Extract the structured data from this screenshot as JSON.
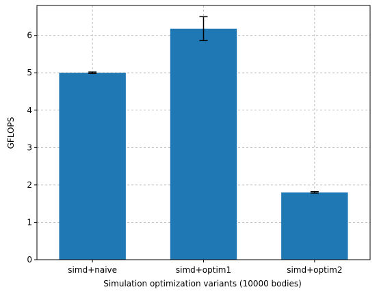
{
  "chart_data": {
    "type": "bar",
    "title": "",
    "xlabel": "Simulation optimization variants (10000 bodies)",
    "ylabel": "GFLOPS",
    "categories": [
      "simd+naive",
      "simd+optim1",
      "simd+optim2"
    ],
    "values": [
      5.0,
      6.18,
      1.8
    ],
    "errors": [
      0.02,
      0.32,
      0.02
    ],
    "ylim": [
      0,
      6.8
    ],
    "yticks": [
      "0",
      "1",
      "2",
      "3",
      "4",
      "5",
      "6"
    ],
    "grid": true,
    "bar_color": "#1f77b4",
    "error_color": "#000000",
    "grid_color": "#b0b0b0"
  }
}
